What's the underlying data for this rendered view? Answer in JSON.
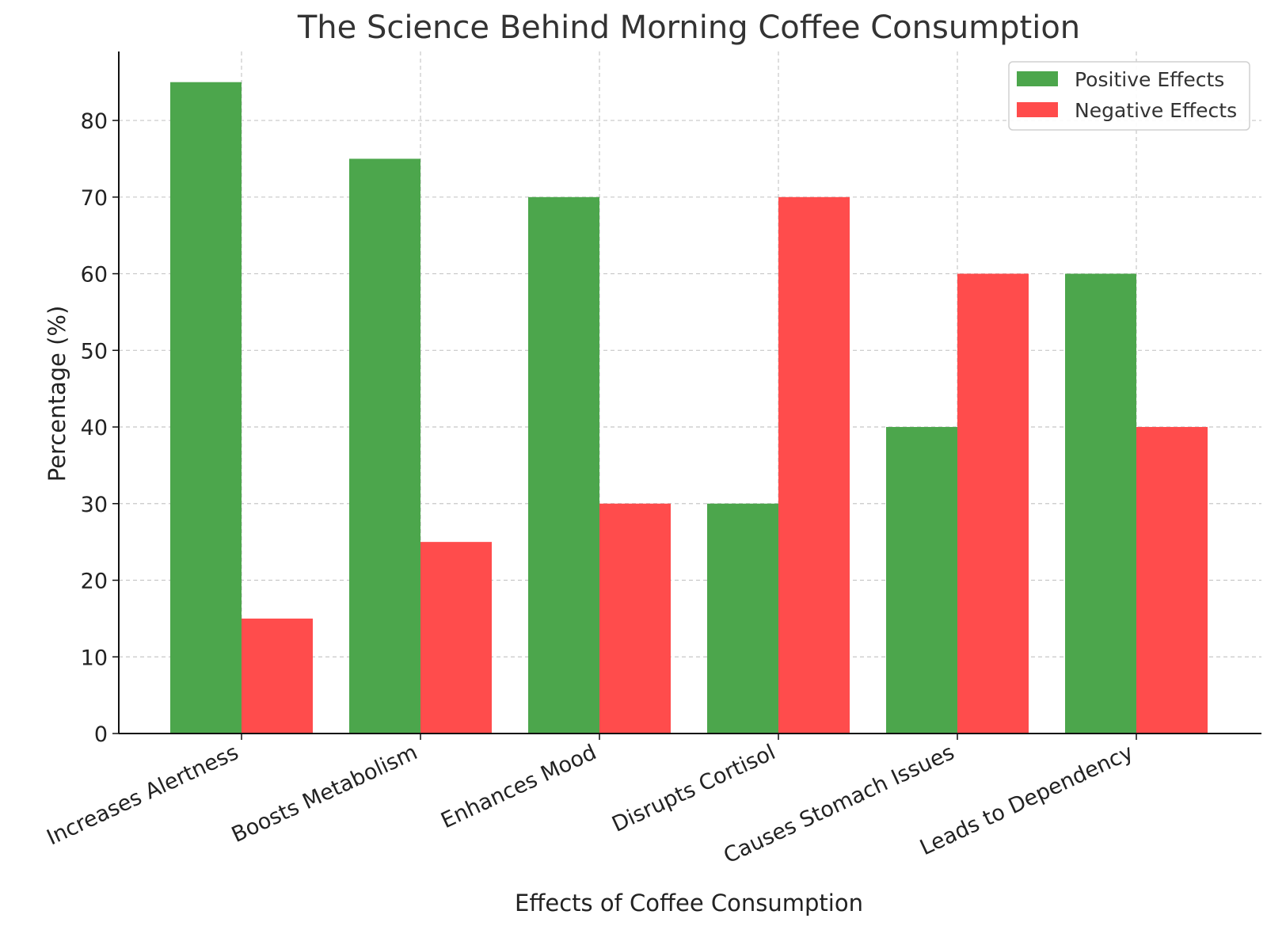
{
  "chart_data": {
    "type": "bar",
    "title": "The Science Behind Morning Coffee Consumption",
    "xlabel": "Effects of Coffee Consumption",
    "ylabel": "Percentage (%)",
    "ylim": [
      0,
      89
    ],
    "yticks": [
      0,
      10,
      20,
      30,
      40,
      50,
      60,
      70,
      80
    ],
    "grid": true,
    "legend_position": "top-right",
    "categories": [
      "Increases Alertness",
      "Boosts Metabolism",
      "Enhances Mood",
      "Disrupts Cortisol",
      "Causes Stomach Issues",
      "Leads to Dependency"
    ],
    "series": [
      {
        "name": "Positive Effects",
        "color": "#4ca64c",
        "values": [
          85,
          75,
          70,
          30,
          40,
          60
        ]
      },
      {
        "name": "Negative Effects",
        "color": "#ff4c4c",
        "values": [
          15,
          25,
          30,
          70,
          60,
          40
        ]
      }
    ]
  }
}
